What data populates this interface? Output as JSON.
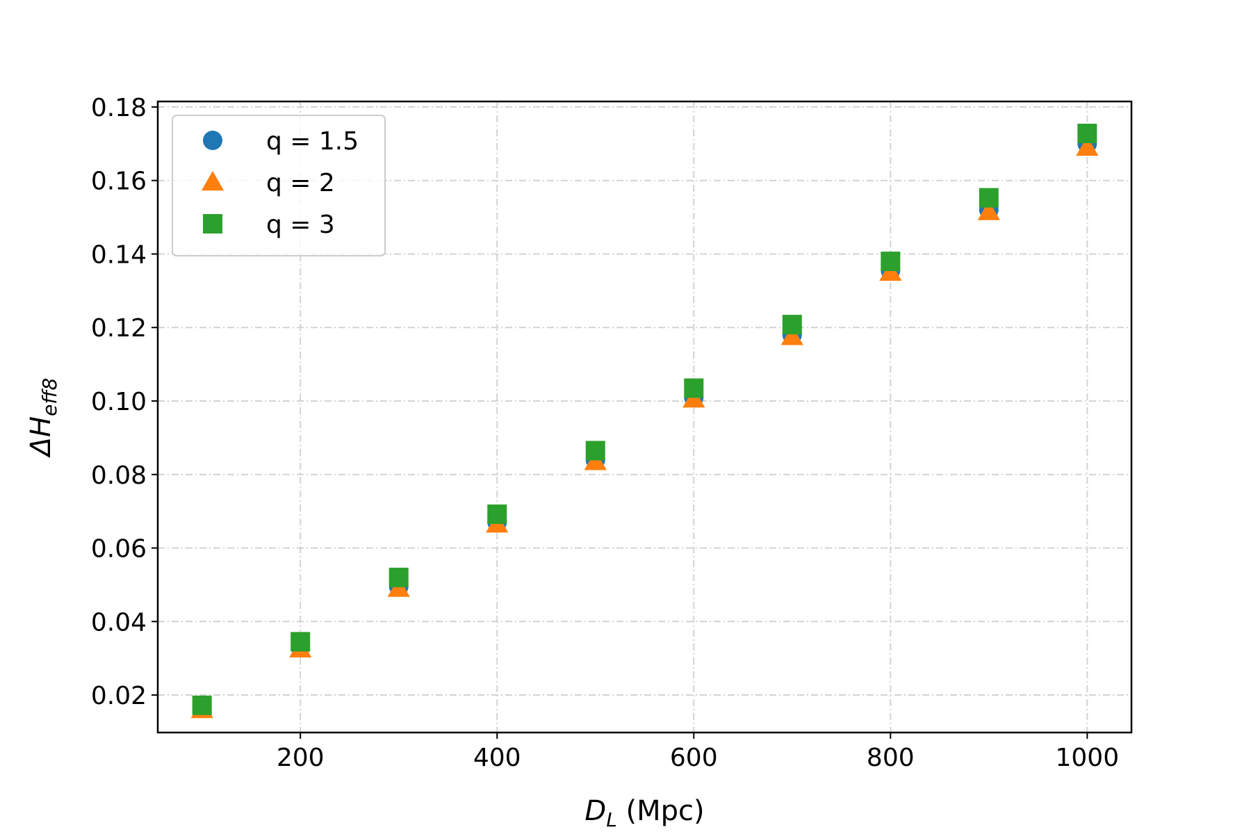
{
  "chart_data": {
    "type": "scatter",
    "xlabel": {
      "symbol": "D",
      "subscript": "L",
      "unit": " (Mpc)"
    },
    "ylabel": {
      "prefix": "ΔH",
      "subscript": "eff8"
    },
    "xlim": [
      55,
      1045
    ],
    "ylim": [
      0.0098,
      0.1815
    ],
    "xticks": [
      200,
      400,
      600,
      800,
      1000
    ],
    "xtick_labels": [
      "200",
      "400",
      "600",
      "800",
      "1000"
    ],
    "yticks": [
      0.02,
      0.04,
      0.06,
      0.08,
      0.1,
      0.12,
      0.14,
      0.16,
      0.18
    ],
    "ytick_labels": [
      "0.02",
      "0.04",
      "0.06",
      "0.08",
      "0.10",
      "0.12",
      "0.14",
      "0.16",
      "0.18"
    ],
    "grid": true,
    "legend_position": "upper-left",
    "x": [
      100,
      200,
      300,
      400,
      500,
      600,
      700,
      800,
      900,
      1000
    ],
    "series": [
      {
        "name": "q = 1.5",
        "marker": "circle",
        "color": "#1f77b4",
        "values": [
          0.0165,
          0.033,
          0.0495,
          0.067,
          0.084,
          0.101,
          0.118,
          0.1355,
          0.152,
          0.17
        ]
      },
      {
        "name": "q = 2",
        "marker": "triangle",
        "color": "#ff7f0e",
        "values": [
          0.016,
          0.0325,
          0.049,
          0.0665,
          0.0835,
          0.1005,
          0.1175,
          0.135,
          0.1515,
          0.169
        ]
      },
      {
        "name": "q = 3",
        "marker": "square",
        "color": "#2ca02c",
        "values": [
          0.0172,
          0.0345,
          0.052,
          0.0692,
          0.0865,
          0.1035,
          0.1208,
          0.138,
          0.1553,
          0.1728
        ]
      }
    ]
  }
}
